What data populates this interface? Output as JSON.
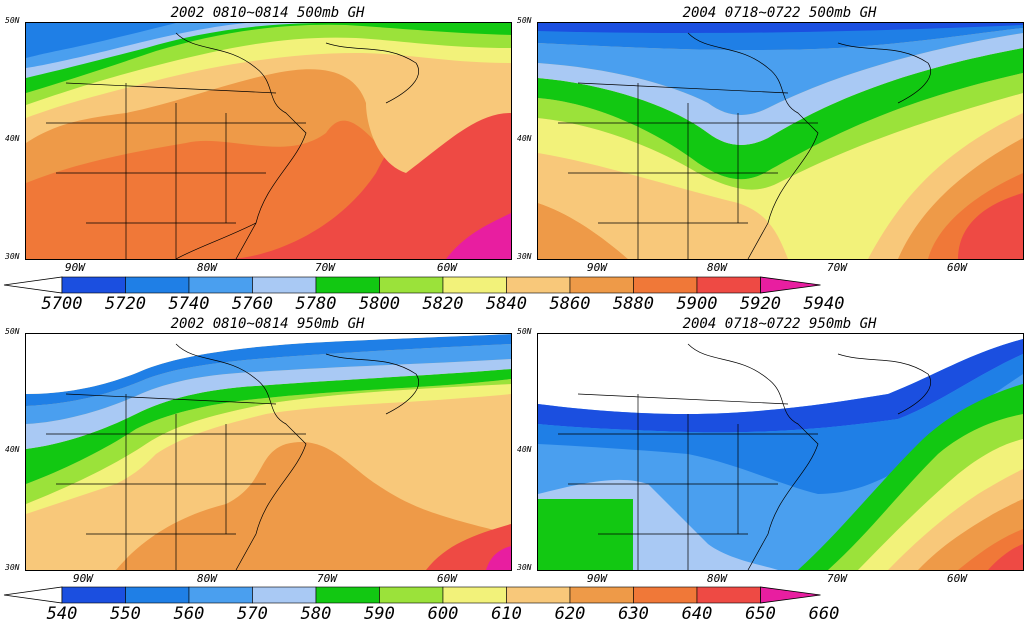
{
  "panels": [
    {
      "title": "2002 0810~0814 500mb GH"
    },
    {
      "title": "2004 0718~0722 500mb GH"
    },
    {
      "title": "2002 0810~0814 950mb GH"
    },
    {
      "title": "2004 0718~0722 950mb GH"
    }
  ],
  "axes": {
    "lat_labels": [
      "50N",
      "40N",
      "30N"
    ],
    "lon_labels": [
      "90W",
      "80W",
      "70W",
      "60W"
    ]
  },
  "colorbar_500": {
    "labels": [
      "5700",
      "5720",
      "5740",
      "5760",
      "5780",
      "5800",
      "5820",
      "5840",
      "5860",
      "5880",
      "5900",
      "5920",
      "5940"
    ]
  },
  "colorbar_950": {
    "labels": [
      "540",
      "550",
      "560",
      "570",
      "580",
      "590",
      "600",
      "610",
      "620",
      "630",
      "640",
      "650",
      "660"
    ]
  },
  "palette": [
    "#ffffff",
    "#1b4fe0",
    "#1f7fe6",
    "#4a9fef",
    "#a9c9f4",
    "#12c812",
    "#9be23a",
    "#f2f27a",
    "#f8c87a",
    "#ee9a48",
    "#f07838",
    "#ee4a44",
    "#e81ea0"
  ]
}
